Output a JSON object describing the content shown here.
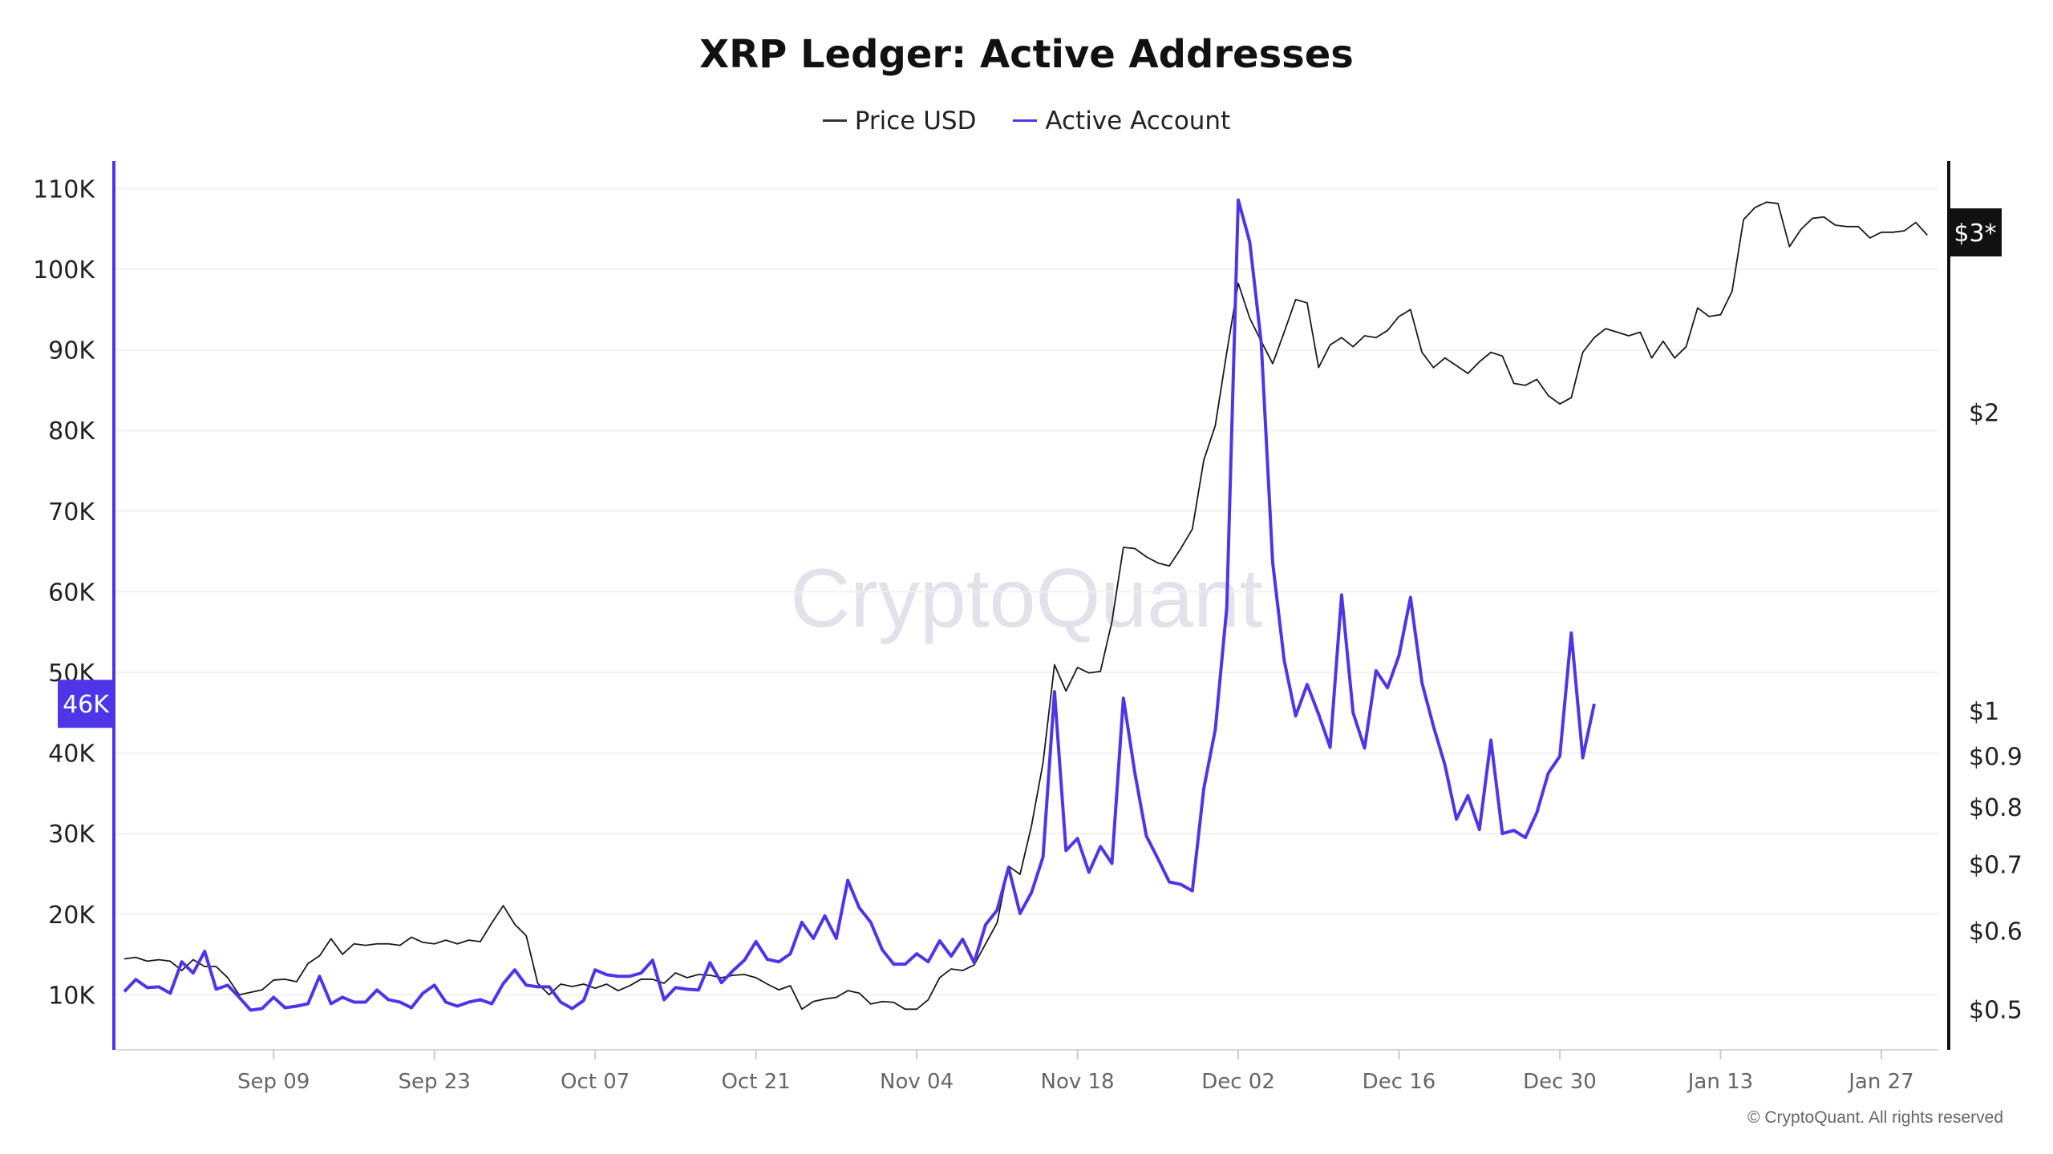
{
  "chart_data": {
    "type": "line",
    "title": "XRP Ledger: Active Addresses",
    "start_date": "Aug 27",
    "x_step": "1 day",
    "x_tick_labels": [
      "Sep 09",
      "Sep 23",
      "Oct 07",
      "Oct 21",
      "Nov 04",
      "Nov 18",
      "Dec 02",
      "Dec 16",
      "Dec 30",
      "Jan 13",
      "Jan 27"
    ],
    "left_axis": {
      "ticks": [
        10,
        20,
        30,
        40,
        50,
        60,
        70,
        80,
        90,
        100,
        110
      ],
      "tick_labels": [
        "10K",
        "20K",
        "30K",
        "40K",
        "50K",
        "60K",
        "70K",
        "80K",
        "90K",
        "100K",
        "110K"
      ],
      "unit": "K",
      "ylim": [
        3.3,
        113
      ]
    },
    "right_axis": {
      "scale": "log",
      "ticks": [
        0.5,
        0.6,
        0.7,
        0.8,
        0.9,
        1,
        2
      ],
      "tick_labels": [
        "$0.5",
        "$0.6",
        "$0.7",
        "$0.8",
        "$0.9",
        "$1",
        "$2"
      ]
    },
    "legend_position": "top-center",
    "grid": true,
    "series": [
      {
        "name": "Price USD",
        "axis": "right",
        "color": "#1a1a1a",
        "values": [
          0.562,
          0.564,
          0.559,
          0.561,
          0.559,
          0.547,
          0.561,
          0.552,
          0.552,
          0.538,
          0.517,
          0.52,
          0.523,
          0.535,
          0.536,
          0.533,
          0.556,
          0.566,
          0.589,
          0.568,
          0.582,
          0.58,
          0.582,
          0.582,
          0.58,
          0.591,
          0.584,
          0.582,
          0.587,
          0.582,
          0.587,
          0.585,
          0.611,
          0.636,
          0.609,
          0.593,
          0.531,
          0.517,
          0.53,
          0.527,
          0.53,
          0.525,
          0.53,
          0.522,
          0.528,
          0.536,
          0.536,
          0.531,
          0.544,
          0.538,
          0.542,
          0.541,
          0.538,
          0.541,
          0.542,
          0.538,
          0.53,
          0.523,
          0.528,
          0.5,
          0.509,
          0.512,
          0.514,
          0.522,
          0.519,
          0.506,
          0.509,
          0.508,
          0.5,
          0.5,
          0.511,
          0.538,
          0.549,
          0.547,
          0.554,
          0.582,
          0.611,
          0.697,
          0.684,
          0.766,
          0.886,
          1.113,
          1.047,
          1.106,
          1.092,
          1.096,
          1.23,
          1.462,
          1.458,
          1.43,
          1.41,
          1.4,
          1.458,
          1.525,
          1.79,
          1.94,
          2.3,
          2.7,
          2.49,
          2.36,
          2.24,
          2.41,
          2.6,
          2.58,
          2.22,
          2.34,
          2.38,
          2.33,
          2.39,
          2.38,
          2.42,
          2.5,
          2.54,
          2.3,
          2.22,
          2.27,
          2.23,
          2.19,
          2.25,
          2.3,
          2.28,
          2.14,
          2.13,
          2.16,
          2.08,
          2.04,
          2.07,
          2.3,
          2.38,
          2.43,
          2.41,
          2.39,
          2.41,
          2.27,
          2.36,
          2.27,
          2.33,
          2.55,
          2.5,
          2.51,
          2.65,
          3.13,
          3.22,
          3.26,
          3.25,
          2.94,
          3.06,
          3.14,
          3.15,
          3.09,
          3.08,
          3.08,
          3.0,
          3.04,
          3.04,
          3.05,
          3.11,
          3.02
        ]
      },
      {
        "name": "Active Account",
        "axis": "left",
        "color": "#4f35e8",
        "values": [
          10.4,
          11.9,
          10.9,
          11.0,
          10.2,
          14.1,
          12.7,
          15.4,
          10.7,
          11.2,
          9.7,
          8.1,
          8.3,
          9.7,
          8.4,
          8.6,
          8.9,
          12.3,
          8.9,
          9.7,
          9.1,
          9.1,
          10.6,
          9.4,
          9.1,
          8.4,
          10.2,
          11.2,
          9.1,
          8.6,
          9.1,
          9.4,
          8.9,
          11.4,
          13.1,
          11.2,
          11.0,
          11.0,
          9.1,
          8.3,
          9.3,
          13.1,
          12.5,
          12.3,
          12.3,
          12.7,
          14.3,
          9.4,
          10.9,
          10.7,
          10.6,
          14.0,
          11.5,
          13.0,
          14.3,
          16.6,
          14.4,
          14.1,
          15.1,
          19.0,
          17.0,
          19.8,
          17.0,
          24.2,
          20.8,
          19.0,
          15.6,
          13.8,
          13.8,
          15.1,
          14.1,
          16.7,
          14.8,
          16.9,
          14.0,
          18.7,
          20.5,
          25.8,
          20.1,
          22.7,
          27.1,
          47.6,
          27.9,
          29.4,
          25.2,
          28.4,
          26.3,
          46.8,
          37.5,
          29.7,
          26.9,
          24.0,
          23.7,
          22.9,
          35.6,
          42.9,
          58.0,
          108.6,
          103.4,
          90.9,
          63.6,
          51.5,
          44.6,
          48.5,
          44.8,
          40.7,
          59.6,
          45.0,
          40.6,
          50.2,
          48.1,
          52.1,
          59.3,
          48.7,
          43.3,
          38.5,
          31.8,
          34.7,
          30.5,
          41.6,
          30.0,
          30.4,
          29.5,
          32.6,
          37.5,
          39.6,
          54.9,
          39.4,
          46.1
        ]
      }
    ],
    "annotations": {
      "last_active_badge": "46K",
      "last_price_badge": "$3*"
    }
  },
  "legend": {
    "price": "Price USD",
    "active": "Active Account"
  },
  "watermark": "CryptoQuant",
  "copyright": "© CryptoQuant. All rights reserved",
  "colors": {
    "active": "#4f35e8",
    "price": "#1a1a1a",
    "grid": "#f0f0f2",
    "watermark": "#e3e1e9"
  }
}
